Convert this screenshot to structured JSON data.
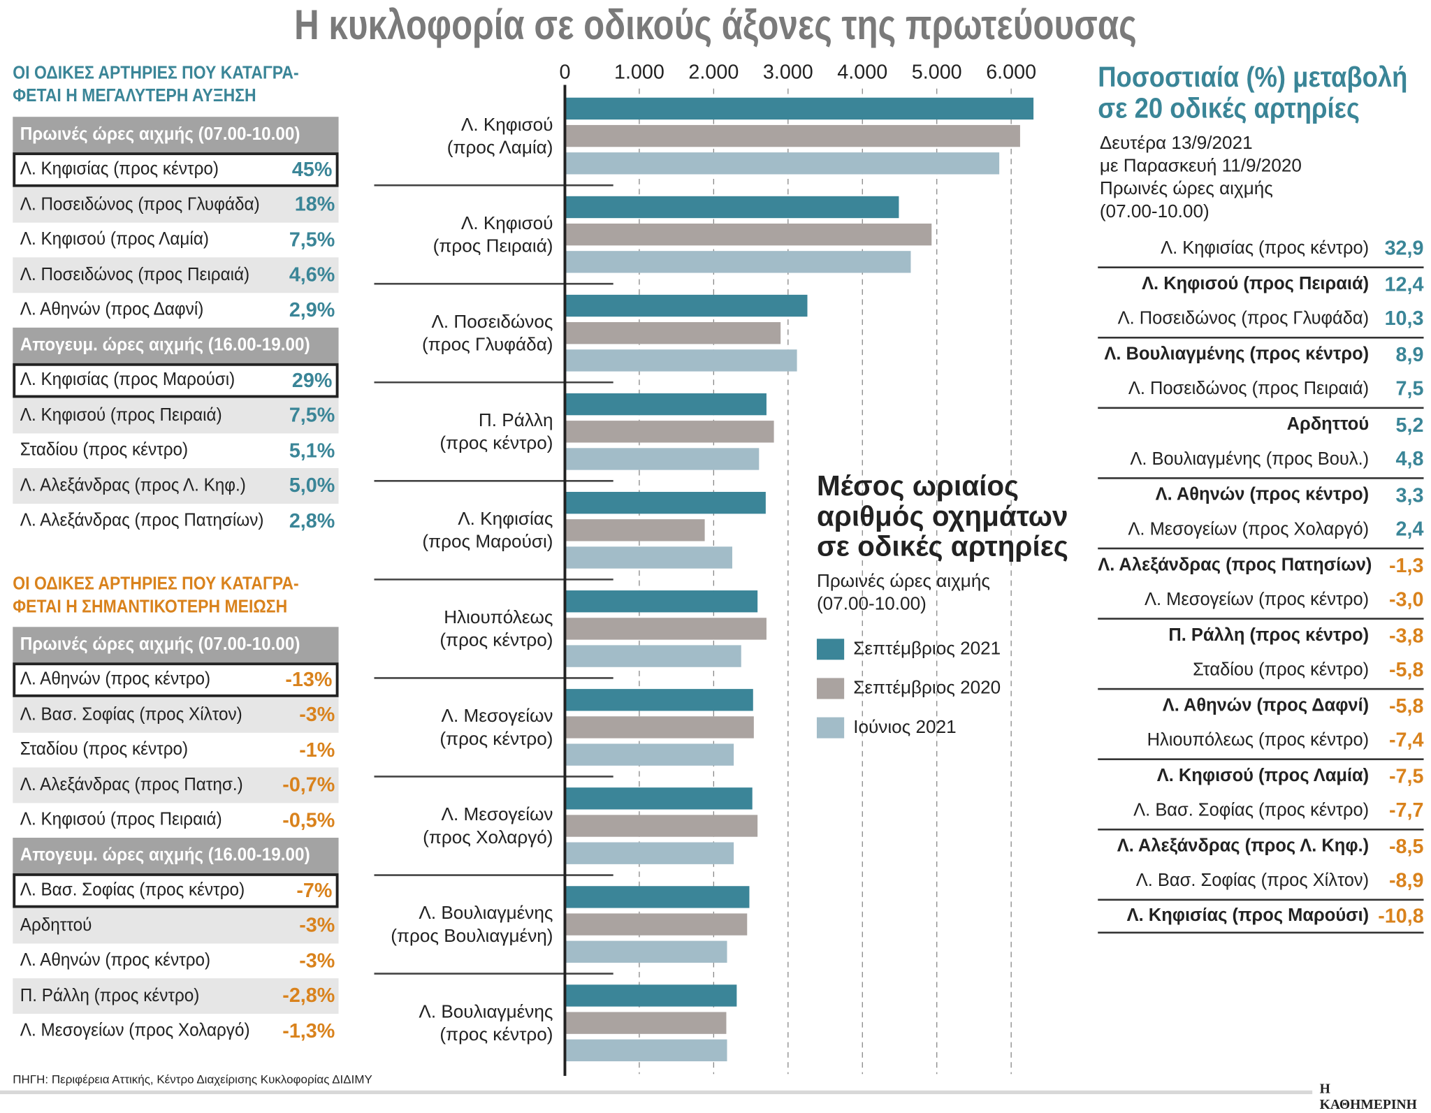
{
  "title": "Η κυκλοφορία σε οδικούς άξονες της πρωτεύουσας",
  "colors": {
    "sep2021": "#3b8598",
    "sep2020": "#aaa3a0",
    "jun2021": "#a2bcc8",
    "teal_text": "#3a8597",
    "orange_text": "#d9821c"
  },
  "increase": {
    "heading": [
      "ΟΙ ΟΔΙΚΕΣ ΑΡΤΗΡΙΕΣ ΠΟΥ ΚΑΤΑΓΡΑ-",
      "ΦΕΤΑΙ Η ΜΕΓΑΛΥΤΕΡΗ ΑΥΞΗΣΗ"
    ],
    "morning_header": "Πρωινές ώρες αιχμής (07.00-10.00)",
    "morning": [
      {
        "name": "Λ. Κηφισίας (προς κέντρο)",
        "value": "45%"
      },
      {
        "name": "Λ. Ποσειδώνος (προς Γλυφάδα)",
        "value": "18%"
      },
      {
        "name": "Λ. Κηφισού (προς Λαμία)",
        "value": "7,5%"
      },
      {
        "name": "Λ. Ποσειδώνος (προς Πειραιά)",
        "value": "4,6%"
      },
      {
        "name": "Λ. Αθηνών (προς Δαφνί)",
        "value": "2,9%"
      }
    ],
    "evening_header": "Απογευμ. ώρες αιχμής (16.00-19.00)",
    "evening": [
      {
        "name": "Λ. Κηφισίας (προς Μαρούσι)",
        "value": "29%"
      },
      {
        "name": "Λ. Κηφισού (προς Πειραιά)",
        "value": "7,5%"
      },
      {
        "name": "Σταδίου (προς κέντρο)",
        "value": "5,1%"
      },
      {
        "name": "Λ. Αλεξάνδρας (προς Λ. Κηφ.)",
        "value": "5,0%"
      },
      {
        "name": "Λ. Αλεξάνδρας (προς Πατησίων)",
        "value": "2,8%"
      }
    ]
  },
  "decrease": {
    "heading": [
      "ΟΙ ΟΔΙΚΕΣ ΑΡΤΗΡΙΕΣ ΠΟΥ ΚΑΤΑΓΡΑ-",
      "ΦΕΤΑΙ Η ΣΗΜΑΝΤΙΚΟΤΕΡΗ ΜΕΙΩΣΗ"
    ],
    "morning_header": "Πρωινές ώρες αιχμής (07.00-10.00)",
    "morning": [
      {
        "name": "Λ. Αθηνών (προς κέντρο)",
        "value": "-13%"
      },
      {
        "name": "Λ. Βασ. Σοφίας (προς Χίλτον)",
        "value": "-3%"
      },
      {
        "name": "Σταδίου (προς κέντρο)",
        "value": "-1%"
      },
      {
        "name": "Λ. Αλεξάνδρας (προς Πατησ.)",
        "value": "-0,7%"
      },
      {
        "name": "Λ. Κηφισού (προς Πειραιά)",
        "value": "-0,5%"
      }
    ],
    "evening_header": "Απογευμ. ώρες αιχμής (16.00-19.00)",
    "evening": [
      {
        "name": "Λ. Βασ. Σοφίας (προς κέντρο)",
        "value": "-7%"
      },
      {
        "name": "Αρδηττού",
        "value": "-3%"
      },
      {
        "name": "Λ. Αθηνών (προς κέντρο)",
        "value": "-3%"
      },
      {
        "name": "Π. Ράλλη (προς κέντρο)",
        "value": "-2,8%"
      },
      {
        "name": "Λ. Μεσογείων (προς Χολαργό)",
        "value": "-1,3%"
      }
    ]
  },
  "chart_data": {
    "type": "bar",
    "orientation": "horizontal",
    "title": [
      "Μέσος ωριαίος",
      "αριθμός οχημάτων",
      "σε οδικές αρτηρίες"
    ],
    "subtitle": [
      "Πρωινές ώρες αιχμής",
      "(07.00-10.00)"
    ],
    "xlim": [
      0,
      6500
    ],
    "xticks": [
      "0",
      "1.000",
      "2.000",
      "3.000",
      "4.000",
      "5.000",
      "6.000"
    ],
    "xtick_values": [
      0,
      1000,
      2000,
      3000,
      4000,
      5000,
      6000
    ],
    "grid": "vertical dashed",
    "legend_position": "right",
    "categories": [
      [
        "Λ. Κηφισού",
        "(προς Λαμία)"
      ],
      [
        "Λ. Κηφισού",
        "(προς Πειραιά)"
      ],
      [
        "Λ. Ποσειδώνος",
        "(προς Γλυφάδα)"
      ],
      [
        "Π. Ράλλη",
        "(προς κέντρο)"
      ],
      [
        "Λ. Κηφισίας",
        "(προς Μαρούσι)"
      ],
      [
        "Ηλιουπόλεως",
        "(προς κέντρο)"
      ],
      [
        "Λ. Μεσογείων",
        "(προς κέντρο)"
      ],
      [
        "Λ. Μεσογείων",
        "(προς Χολαργό)"
      ],
      [
        "Λ. Βουλιαγμένης",
        "(προς Βουλιαγμένη)"
      ],
      [
        "Λ. Βουλιαγμένης",
        "(προς κέντρο)"
      ]
    ],
    "series": [
      {
        "name": "Σεπτέμβριος 2021",
        "color": "#3b8598",
        "values": [
          6300,
          4490,
          3260,
          2710,
          2700,
          2590,
          2530,
          2520,
          2480,
          2310
        ]
      },
      {
        "name": "Σεπτέμβριος 2020",
        "color": "#aaa3a0",
        "values": [
          6120,
          4930,
          2900,
          2810,
          1880,
          2710,
          2540,
          2590,
          2450,
          2170
        ]
      },
      {
        "name": "Ιούνιος 2021",
        "color": "#a2bcc8",
        "values": [
          5840,
          4650,
          3120,
          2610,
          2250,
          2370,
          2270,
          2270,
          2180,
          2180
        ]
      }
    ]
  },
  "change": {
    "title": [
      "Ποσοστιαία (%) μεταβολή",
      "σε 20 οδικές αρτηρίες"
    ],
    "subtitle": [
      "Δευτέρα 13/9/2021",
      "με Παρασκευή 11/9/2020",
      "Πρωινές ώρες αιχμής",
      "(07.00-10.00)"
    ],
    "rows": [
      {
        "name": "Λ. Κηφισίας (προς κέντρο)",
        "value": "32,9"
      },
      {
        "name": "Λ. Κηφισού (προς Πειραιά)",
        "value": "12,4"
      },
      {
        "name": "Λ. Ποσειδώνος (προς Γλυφάδα)",
        "value": "10,3"
      },
      {
        "name": "Λ. Βουλιαγμένης (προς κέντρο)",
        "value": "8,9"
      },
      {
        "name": "Λ. Ποσειδώνος (προς Πειραιά)",
        "value": "7,5"
      },
      {
        "name": "Αρδηττού",
        "value": "5,2"
      },
      {
        "name": "Λ. Βουλιαγμένης (προς Βουλ.)",
        "value": "4,8"
      },
      {
        "name": "Λ. Αθηνών (προς κέντρο)",
        "value": "3,3"
      },
      {
        "name": "Λ. Μεσογείων (προς Χολαργό)",
        "value": "2,4"
      },
      {
        "name": "Λ. Αλεξάνδρας (προς Πατησίων)",
        "value": "-1,3"
      },
      {
        "name": "Λ. Μεσογείων (προς κέντρο)",
        "value": "-3,0"
      },
      {
        "name": "Π. Ράλλη (προς κέντρο)",
        "value": "-3,8"
      },
      {
        "name": "Σταδίου (προς κέντρο)",
        "value": "-5,8"
      },
      {
        "name": "Λ. Αθηνών (προς Δαφνί)",
        "value": "-5,8"
      },
      {
        "name": "Ηλιουπόλεως (προς κέντρο)",
        "value": "-7,4"
      },
      {
        "name": "Λ. Κηφισού (προς Λαμία)",
        "value": "-7,5"
      },
      {
        "name": "Λ. Βασ. Σοφίας (προς κέντρο)",
        "value": "-7,7"
      },
      {
        "name": "Λ. Αλεξάνδρας (προς Λ. Κηφ.)",
        "value": "-8,5"
      },
      {
        "name": "Λ. Βασ. Σοφίας (προς Χίλτον)",
        "value": "-8,9"
      },
      {
        "name": "Λ. Κηφισίας (προς Μαρούσι)",
        "value": "-10,8"
      }
    ]
  },
  "source": "ΠΗΓΗ: Περιφέρεια Αττικής, Κέντρο Διαχείρισης Κυκλοφορίας ΔΙΔΙΜΥ",
  "logo": "Η ΚΑΘΗΜΕΡΙΝΗ"
}
